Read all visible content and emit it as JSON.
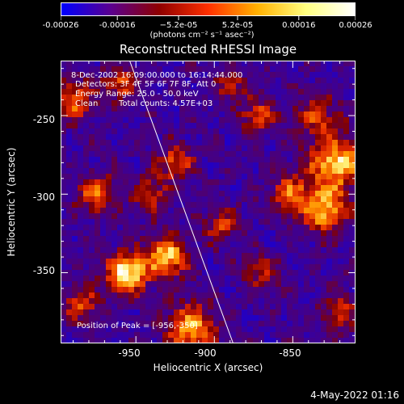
{
  "colorbar": {
    "tick_labels": [
      "-0.00026",
      "-0.00016",
      "−5.2e-05",
      "5.2e-05",
      "0.00016",
      "0.00026"
    ],
    "tick_values": [
      -0.00026,
      -0.00016,
      -5.2e-05,
      5.2e-05,
      0.00016,
      0.00026
    ],
    "range": [
      -0.00026,
      0.00026
    ],
    "unit": "(photons cm⁻² s⁻¹ asec⁻²)",
    "colors": [
      "#0000ff",
      "#5a0090",
      "#8f0000",
      "#ff3000",
      "#ffb000",
      "#ffff80",
      "#ffffff"
    ]
  },
  "title": "Reconstructed RHESSI Image",
  "info": {
    "line1": "8-Dec-2002 16:09:00.000 to 16:14:44.000",
    "line2": "Detectors: 3F 4F 5F 6F 7F 8F, Att 0",
    "line3": "Energy Range: 25.0 - 50.0 keV",
    "line4_a": "Clean",
    "line4_b": "Total counts: 4.57E+03"
  },
  "peak_text": "Position of Peak = [-956,-350]",
  "xlabel": "Heliocentric X (arcsec)",
  "ylabel": "Heliocentric Y (arcsec)",
  "x_ticks": [
    "-950",
    "-900",
    "-850"
  ],
  "y_ticks": [
    "-250",
    "-300",
    "-350"
  ],
  "footer": "4-May-2022 01:16",
  "chart_data": {
    "type": "heatmap",
    "xlim": [
      -998,
      -810
    ],
    "ylim": [
      -395,
      -215
    ],
    "x_tick_values": [
      -950,
      -900,
      -850
    ],
    "y_tick_values": [
      -250,
      -300,
      -350
    ],
    "peak": [
      -956,
      -350
    ],
    "limb_line": [
      [
        -954,
        -215
      ],
      [
        -888,
        -395
      ]
    ]
  }
}
